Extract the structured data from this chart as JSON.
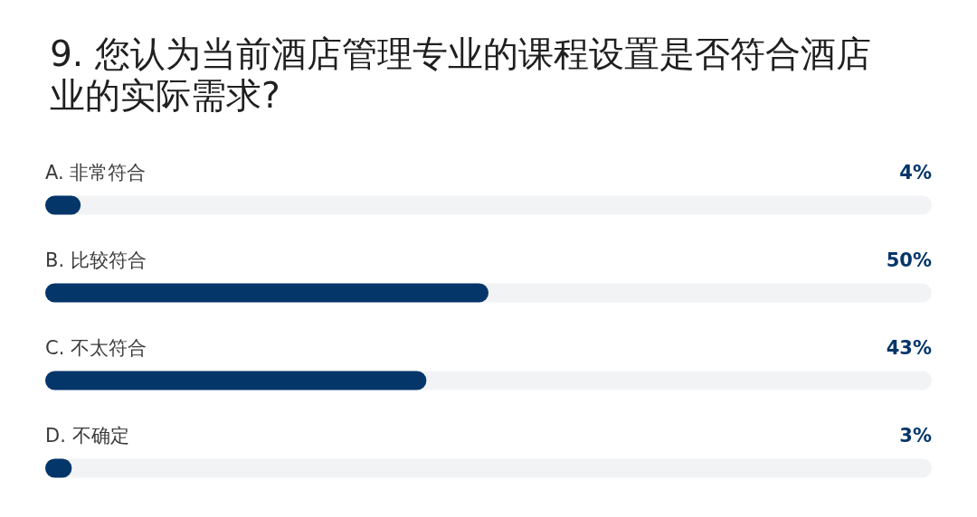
{
  "chart_data": {
    "type": "bar",
    "orientation": "horizontal",
    "title": "9. 您认为当前酒店管理专业的课程设置是否符合酒店业的实际需求?",
    "categories": [
      "A. 非常符合",
      "B. 比较符合",
      "C. 不太符合",
      "D. 不确定"
    ],
    "values": [
      4,
      50,
      43,
      3
    ],
    "value_labels": [
      "4%",
      "50%",
      "43%",
      "3%"
    ],
    "color": "#04366a",
    "xlim": [
      0,
      100
    ],
    "tick_labels": "y"
  }
}
